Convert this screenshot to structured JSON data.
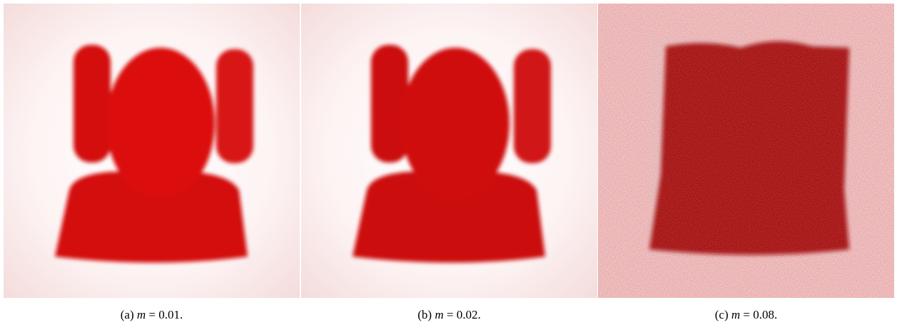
{
  "figures": [
    {
      "label": "(a)",
      "variable": "m",
      "value": "= 0.01."
    },
    {
      "label": "(b)",
      "variable": "m",
      "value": "= 0.02."
    },
    {
      "label": "(c)",
      "variable": "m",
      "value": "= 0.08."
    }
  ]
}
